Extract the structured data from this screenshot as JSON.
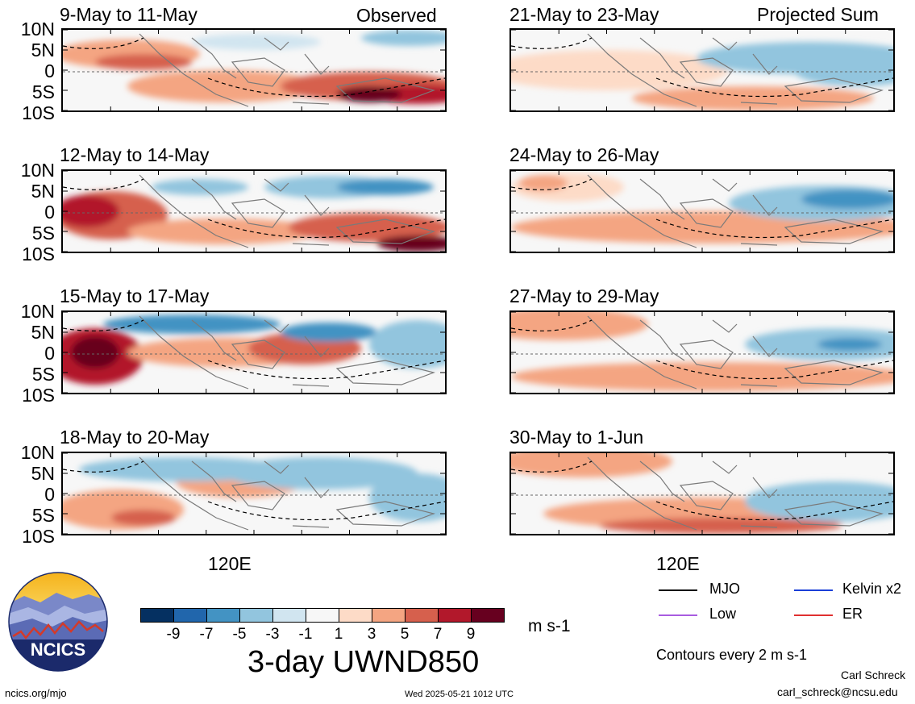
{
  "chart_data": {
    "type": "heatmap",
    "variable_title": "3-day UWND850",
    "units": "m s-1",
    "columns": [
      {
        "label": "Observed",
        "panels": [
          "9-May to 11-May",
          "12-May to 14-May",
          "15-May to 17-May",
          "18-May to 20-May"
        ]
      },
      {
        "label": "Projected Sum",
        "panels": [
          "21-May to 23-May",
          "24-May to 26-May",
          "27-May to 29-May",
          "30-May to 1-Jun"
        ]
      }
    ],
    "y_ticks": [
      "10N",
      "5N",
      "0",
      "5S",
      "10S"
    ],
    "x_tick_label": "120E",
    "colorbar": {
      "levels": [
        "-9",
        "-7",
        "-5",
        "-3",
        "-1",
        "1",
        "3",
        "5",
        "7",
        "9"
      ],
      "colors": [
        "#053061",
        "#2166ac",
        "#4393c3",
        "#92c5de",
        "#d1e5f0",
        "#f7f7f7",
        "#fddbc7",
        "#f4a582",
        "#d6604d",
        "#b2182b",
        "#67001f"
      ]
    },
    "contour_note": "Contours every 2 m s-1",
    "legend": [
      {
        "name": "MJO",
        "color": "#000000"
      },
      {
        "name": "Kelvin x2",
        "color": "#1a3fd8"
      },
      {
        "name": "Low",
        "color": "#a85ce0"
      },
      {
        "name": "ER",
        "color": "#e03030"
      }
    ]
  },
  "logo_text": "NCICS",
  "footer": {
    "url": "ncics.org/mjo",
    "timestamp": "Wed 2025-05-21 1012 UTC",
    "author": "Carl Schreck",
    "email": "carl_schreck@ncsu.edu"
  }
}
